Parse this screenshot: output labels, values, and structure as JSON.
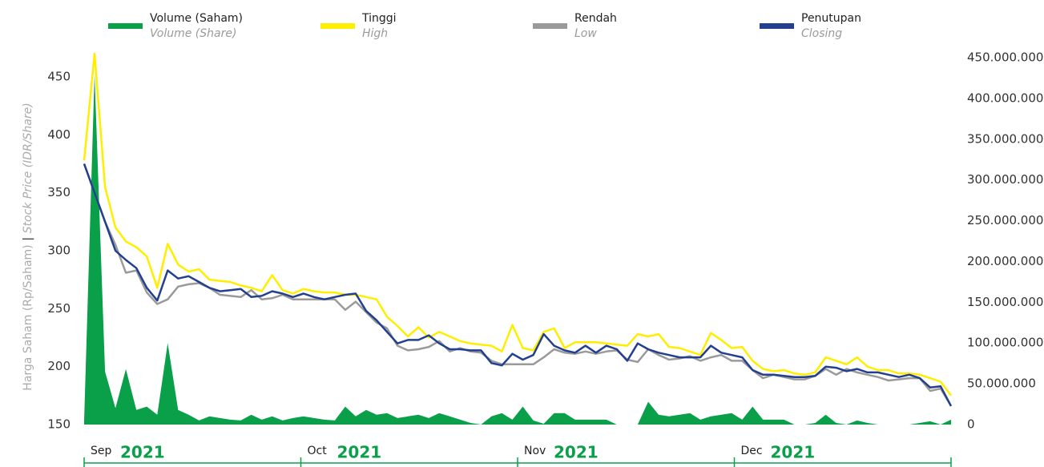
{
  "chart_data": {
    "type": "line",
    "y_label": "Harga Saham (Rp/Saham)",
    "y_label_sep": "|",
    "y_label_en": "Stock Price (IDR/Share)",
    "months": [
      {
        "month": "Sep",
        "year": "2021"
      },
      {
        "month": "Oct",
        "year": "2021"
      },
      {
        "month": "Nov",
        "year": "2021"
      },
      {
        "month": "Dec",
        "year": "2021"
      }
    ],
    "ylim": [
      150,
      470
    ],
    "yticks": [
      150,
      200,
      250,
      300,
      350,
      400,
      450
    ],
    "y2lim": [
      0,
      455000000
    ],
    "y2ticks": [
      0,
      {
        "value": 50000000,
        "label": "50.000.000"
      },
      {
        "value": 100000000,
        "label": "100.000.000"
      },
      {
        "value": 150000000,
        "label": "150.000.000"
      },
      {
        "value": 200000000,
        "label": "200.000.000"
      },
      {
        "value": 250000000,
        "label": "250.000.000"
      },
      {
        "value": 300000000,
        "label": "300.000.000"
      },
      {
        "value": 350000000,
        "label": "350.000.000"
      },
      {
        "value": 400000000,
        "label": "400.000.000"
      },
      {
        "value": 450000000,
        "label": "450.000.000"
      }
    ],
    "series": [
      {
        "name": "Volume (Saham)",
        "name_en": "Volume (Share)",
        "color": "#0aa04a",
        "axis": "y2",
        "kind": "area",
        "values": [
          5000000,
          430000000,
          65000000,
          20000000,
          68000000,
          18000000,
          22000000,
          12000000,
          100000000,
          18000000,
          12000000,
          5000000,
          10000000,
          8000000,
          6000000,
          5000000,
          12000000,
          6000000,
          10000000,
          5000000,
          8000000,
          10000000,
          8000000,
          6000000,
          5000000,
          22000000,
          10000000,
          18000000,
          12000000,
          14000000,
          8000000,
          10000000,
          12000000,
          8000000,
          14000000,
          10000000,
          6000000,
          2000000,
          0,
          10000000,
          14000000,
          6000000,
          22000000,
          5000000,
          1000000,
          14000000,
          14000000,
          6000000,
          6000000,
          6000000,
          6000000,
          0,
          0,
          0,
          28000000,
          12000000,
          10000000,
          12000000,
          14000000,
          6000000,
          10000000,
          12000000,
          14000000,
          6000000,
          22000000,
          6000000,
          6000000,
          6000000,
          0,
          0,
          2000000,
          12000000,
          2000000,
          0,
          5000000,
          2000000,
          0,
          0,
          0,
          0,
          2000000,
          4000000,
          0,
          6000000
        ]
      },
      {
        "name": "Tinggi",
        "name_en": "High",
        "color": "#ffee00",
        "values": [
          378,
          470,
          355,
          320,
          308,
          303,
          295,
          268,
          306,
          288,
          282,
          284,
          275,
          274,
          273,
          270,
          268,
          265,
          279,
          266,
          263,
          267,
          265,
          264,
          264,
          262,
          262,
          260,
          258,
          243,
          235,
          226,
          234,
          225,
          230,
          226,
          222,
          220,
          219,
          218,
          213,
          236,
          216,
          214,
          230,
          233,
          216,
          221,
          221,
          221,
          220,
          219,
          218,
          228,
          226,
          228,
          217,
          216,
          213,
          210,
          229,
          223,
          216,
          217,
          205,
          198,
          196,
          197,
          194,
          193,
          195,
          208,
          205,
          202,
          208,
          200,
          197,
          197,
          194,
          194,
          193,
          190,
          187,
          175
        ]
      },
      {
        "name": "Rendah",
        "name_en": "Low",
        "color": "#9a9a9a",
        "values": [
          375,
          350,
          325,
          305,
          281,
          283,
          264,
          254,
          258,
          269,
          271,
          272,
          268,
          262,
          261,
          260,
          266,
          258,
          259,
          262,
          258,
          258,
          258,
          258,
          258,
          249,
          256,
          247,
          238,
          233,
          218,
          214,
          215,
          217,
          222,
          213,
          216,
          213,
          212,
          205,
          202,
          202,
          202,
          202,
          208,
          215,
          212,
          211,
          213,
          211,
          213,
          214,
          206,
          204,
          215,
          210,
          206,
          207,
          209,
          205,
          208,
          210,
          205,
          205,
          197,
          190,
          193,
          191,
          189,
          189,
          192,
          198,
          193,
          198,
          195,
          193,
          191,
          188,
          189,
          190,
          190,
          179,
          181,
          166
        ]
      },
      {
        "name": "Penutupan",
        "name_en": "Closing",
        "color": "#233f8f",
        "values": [
          375,
          350,
          325,
          300,
          292,
          285,
          268,
          257,
          283,
          276,
          278,
          273,
          268,
          265,
          266,
          267,
          260,
          261,
          265,
          263,
          260,
          263,
          260,
          258,
          260,
          262,
          263,
          248,
          240,
          230,
          220,
          223,
          223,
          227,
          220,
          215,
          215,
          214,
          214,
          203,
          201,
          211,
          206,
          210,
          228,
          218,
          214,
          212,
          218,
          212,
          218,
          215,
          205,
          220,
          215,
          212,
          210,
          208,
          208,
          208,
          218,
          212,
          210,
          208,
          197,
          193,
          193,
          192,
          191,
          191,
          192,
          200,
          199,
          196,
          198,
          195,
          195,
          193,
          191,
          193,
          190,
          182,
          183,
          166
        ]
      }
    ]
  }
}
